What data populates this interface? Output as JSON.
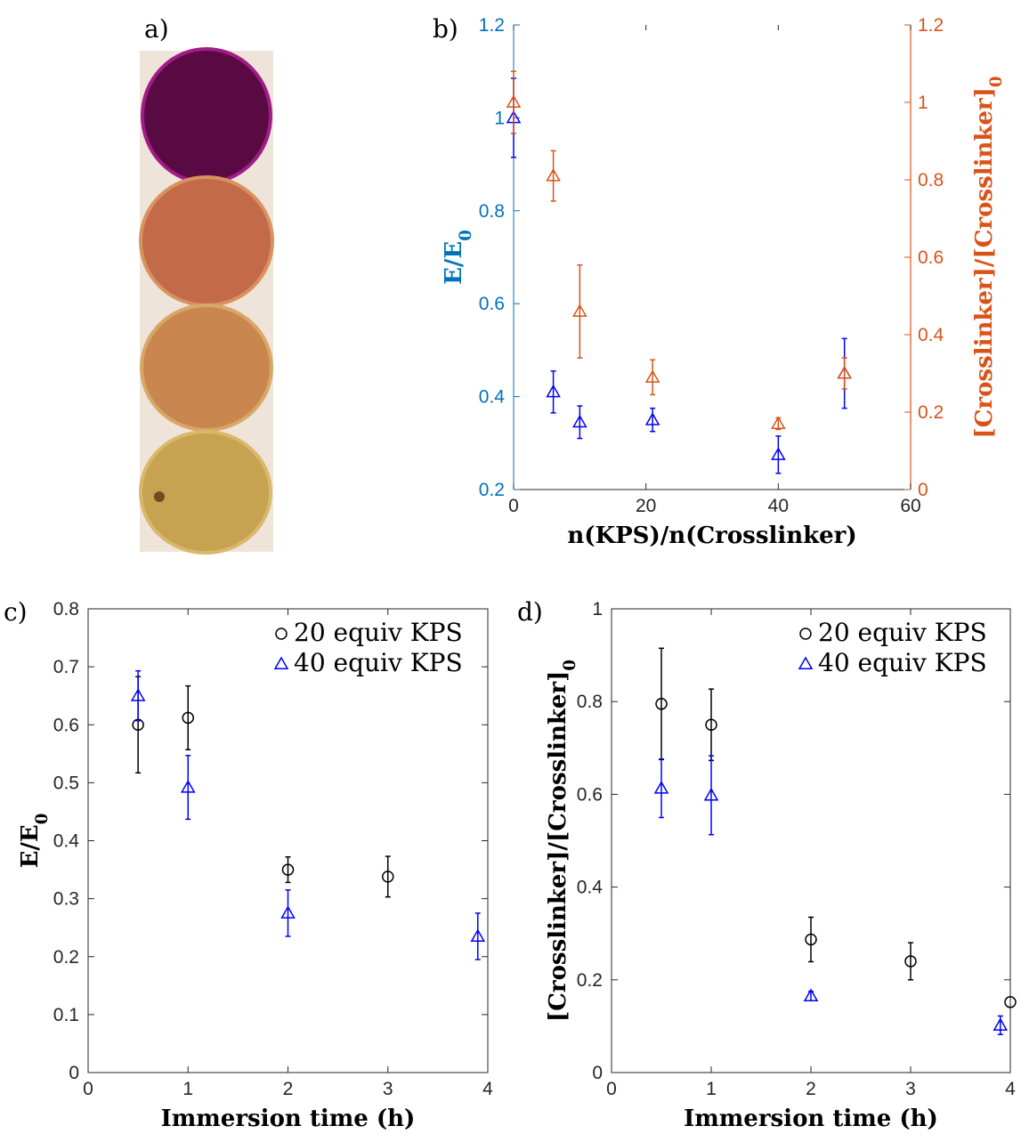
{
  "panel_labels": [
    "a)",
    "b)",
    "c)",
    "d)"
  ],
  "photo": {
    "description_hidden": "",
    "disks": [
      {
        "color": "#5a0a42",
        "rim": "#a01c86"
      },
      {
        "color": "#c36a4a",
        "rim": "#d8925f"
      },
      {
        "color": "#c9864f",
        "rim": "#d9a765"
      },
      {
        "color": "#c7a250",
        "rim": "#d8b86a"
      }
    ]
  },
  "chart_data": [
    {
      "id": "b",
      "type": "scatter",
      "xlabel": "n(KPS)/n(Crosslinker)",
      "ylabel": "E/E0",
      "ylabel_main": "E/E",
      "ylabel_sub": "0",
      "y2label_main": "[Crosslinker]/[Crosslinker]",
      "y2label_sub": "0",
      "xlim": [
        0,
        60
      ],
      "ylim": [
        0.2,
        1.2
      ],
      "y2lim": [
        0,
        1.2
      ],
      "xticks": [
        "0",
        "20",
        "40",
        "60"
      ],
      "yticks": [
        "0.2",
        "0.4",
        "0.6",
        "0.8",
        "1",
        "1.2"
      ],
      "y2ticks": [
        "0",
        "0.2",
        "0.4",
        "0.6",
        "0.8",
        "1",
        "1.2"
      ],
      "grid": false,
      "left_axis_color": "#0072bd",
      "right_axis_color": "#d95319",
      "series": [
        {
          "axis": "left",
          "marker": "triangle",
          "color": "#0000ff",
          "x": [
            0,
            6,
            10,
            21,
            40,
            50
          ],
          "y": [
            1.0,
            0.41,
            0.345,
            0.35,
            0.275,
            0.45
          ],
          "err": [
            0.085,
            0.045,
            0.035,
            0.025,
            0.04,
            0.075
          ]
        },
        {
          "axis": "right",
          "marker": "triangle",
          "color": "#d95319",
          "x": [
            0,
            6,
            10,
            21,
            40,
            50
          ],
          "y": [
            1.0,
            0.81,
            0.46,
            0.29,
            0.17,
            0.3
          ],
          "err": [
            0.08,
            0.065,
            0.12,
            0.045,
            0.015,
            0.04
          ]
        }
      ]
    },
    {
      "id": "c",
      "type": "scatter",
      "xlabel": "Immersion time  (h)",
      "ylabel": "E/E0",
      "ylabel_main": "E/E",
      "ylabel_sub": "0",
      "xlim": [
        0,
        4
      ],
      "ylim": [
        0,
        0.8
      ],
      "xticks": [
        "0",
        "1",
        "2",
        "3",
        "4"
      ],
      "yticks": [
        "0",
        "0.1",
        "0.2",
        "0.3",
        "0.4",
        "0.5",
        "0.6",
        "0.7",
        "0.8"
      ],
      "grid": false,
      "legend_position": "top-right",
      "series": [
        {
          "name": "20 equiv KPS",
          "marker": "circle",
          "color": "#000000",
          "x": [
            0.5,
            1,
            2,
            3
          ],
          "y": [
            0.6,
            0.612,
            0.35,
            0.338
          ],
          "err": [
            0.083,
            0.055,
            0.022,
            0.035
          ]
        },
        {
          "name": "40 equiv KPS",
          "marker": "triangle",
          "color": "#0000ff",
          "x": [
            0.5,
            1,
            2,
            3.9
          ],
          "y": [
            0.65,
            0.492,
            0.275,
            0.235
          ],
          "err": [
            0.043,
            0.055,
            0.04,
            0.04
          ]
        }
      ]
    },
    {
      "id": "d",
      "type": "scatter",
      "xlabel": "Immersion time  (h)",
      "ylabel": "[Crosslinker]/[Crosslinker]0",
      "ylabel_main": "[Crosslinker]/[Crosslinker]",
      "ylabel_sub": "0",
      "xlim": [
        0,
        4
      ],
      "ylim": [
        0,
        1
      ],
      "xticks": [
        "0",
        "1",
        "2",
        "3",
        "4"
      ],
      "yticks": [
        "0",
        "0.2",
        "0.4",
        "0.6",
        "0.8",
        "1"
      ],
      "grid": false,
      "legend_position": "top-right",
      "series": [
        {
          "name": "20 equiv KPS",
          "marker": "circle",
          "color": "#000000",
          "x": [
            0.5,
            1,
            2,
            3,
            4
          ],
          "y": [
            0.795,
            0.75,
            0.287,
            0.24,
            0.152
          ],
          "err": [
            0.12,
            0.077,
            0.048,
            0.04,
            0
          ]
        },
        {
          "name": "40 equiv KPS",
          "marker": "triangle",
          "color": "#0000ff",
          "x": [
            0.5,
            1,
            2,
            3.9
          ],
          "y": [
            0.613,
            0.598,
            0.165,
            0.102
          ],
          "err": [
            0.063,
            0.085,
            0.01,
            0.02
          ]
        }
      ]
    }
  ]
}
